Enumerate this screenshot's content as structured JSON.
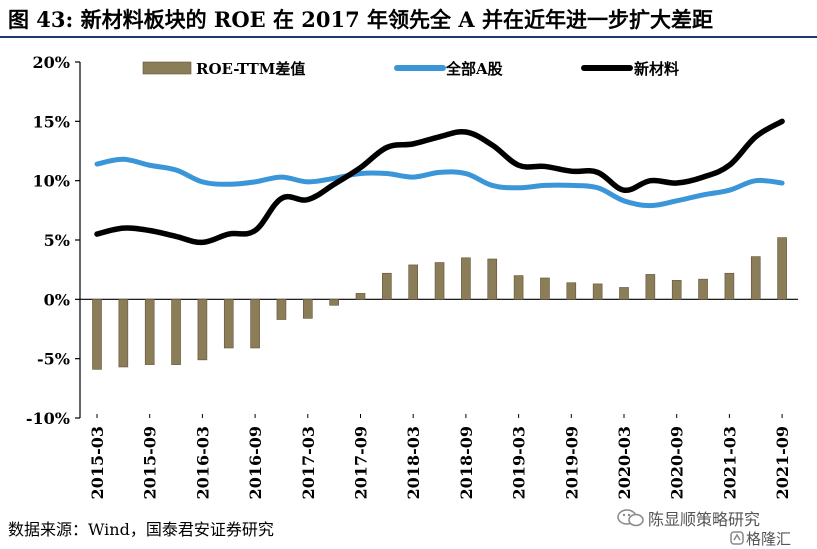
{
  "title": "图 43: 新材料板块的 ROE 在 2017 年领先全 A 并在近年进一步扩大差距",
  "source": "数据来源：Wind，国泰君安证券研究",
  "watermark": {
    "line1": "陈显顺策略研究",
    "line2": "格隆汇"
  },
  "colors": {
    "bar": "#8b7d58",
    "line_all_a": "#3a96d8",
    "line_new_materials": "#000000",
    "title_rule": "#1b3a6b"
  },
  "chart_data": {
    "type": "bar+line",
    "ylim": [
      -0.1,
      0.2
    ],
    "yticks": [
      "20%",
      "15%",
      "10%",
      "5%",
      "0%",
      "-5%",
      "-10%"
    ],
    "ytick_values": [
      0.2,
      0.15,
      0.1,
      0.05,
      0.0,
      -0.05,
      -0.1
    ],
    "xtick_labels": [
      "2015-03",
      "2015-09",
      "2016-03",
      "2016-09",
      "2017-03",
      "2017-09",
      "2018-03",
      "2018-09",
      "2019-03",
      "2019-09",
      "2020-03",
      "2020-09",
      "2021-03",
      "2021-09"
    ],
    "legend": [
      "ROE-TTM差值",
      "全部A股",
      "新材料"
    ],
    "bars": {
      "name": "ROE-TTM差值",
      "categories": [
        "2015-03",
        "2015-06",
        "2015-09",
        "2015-12",
        "2016-03",
        "2016-06",
        "2016-09",
        "2016-12",
        "2017-03",
        "2017-06",
        "2017-09",
        "2017-12",
        "2018-03",
        "2018-06",
        "2018-09",
        "2018-12",
        "2019-03",
        "2019-06",
        "2019-09",
        "2019-12",
        "2020-03",
        "2020-06",
        "2020-09",
        "2020-12",
        "2021-03",
        "2021-06",
        "2021-09"
      ],
      "values": [
        -0.059,
        -0.057,
        -0.055,
        -0.055,
        -0.051,
        -0.041,
        -0.041,
        -0.017,
        -0.016,
        -0.005,
        0.005,
        0.022,
        0.029,
        0.031,
        0.035,
        0.034,
        0.02,
        0.018,
        0.014,
        0.013,
        0.01,
        0.021,
        0.016,
        0.017,
        0.022,
        0.036,
        0.052
      ]
    },
    "series": [
      {
        "name": "全部A股",
        "x": [
          0,
          1,
          2,
          3,
          4,
          5,
          6,
          7,
          8,
          9,
          10,
          11,
          12,
          13,
          14,
          15,
          16,
          17,
          18,
          19,
          20,
          21,
          22,
          23,
          24,
          25,
          26
        ],
        "values": [
          0.114,
          0.118,
          0.113,
          0.109,
          0.099,
          0.097,
          0.099,
          0.103,
          0.099,
          0.102,
          0.106,
          0.106,
          0.103,
          0.107,
          0.106,
          0.096,
          0.094,
          0.096,
          0.096,
          0.094,
          0.083,
          0.079,
          0.083,
          0.088,
          0.092,
          0.1,
          0.098
        ]
      },
      {
        "name": "新材料",
        "x": [
          0,
          1,
          2,
          3,
          4,
          5,
          6,
          7,
          8,
          9,
          10,
          11,
          12,
          13,
          14,
          15,
          16,
          17,
          18,
          19,
          20,
          21,
          22,
          23,
          24,
          25,
          26
        ],
        "values": [
          0.055,
          0.06,
          0.058,
          0.053,
          0.048,
          0.055,
          0.058,
          0.085,
          0.084,
          0.097,
          0.111,
          0.128,
          0.131,
          0.137,
          0.141,
          0.13,
          0.113,
          0.112,
          0.108,
          0.107,
          0.092,
          0.1,
          0.098,
          0.103,
          0.113,
          0.137,
          0.15
        ]
      }
    ]
  }
}
